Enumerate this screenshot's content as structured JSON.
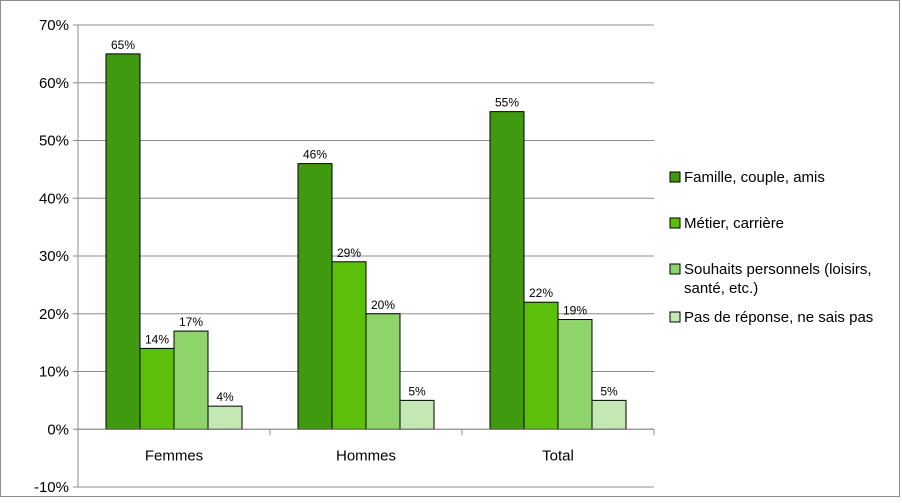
{
  "chart_data": {
    "type": "bar",
    "title": "",
    "xlabel": "",
    "ylabel": "",
    "categories": [
      "Femmes",
      "Hommes",
      "Total"
    ],
    "ylim": [
      -0.1,
      0.7
    ],
    "yticks": [
      "-10%",
      "0%",
      "10%",
      "20%",
      "30%",
      "40%",
      "50%",
      "60%",
      "70%"
    ],
    "grid": true,
    "legend_position": "right",
    "series": [
      {
        "name": "Famille, couple, amis",
        "color": "#3f9a0f",
        "values": [
          0.65,
          0.46,
          0.55
        ],
        "labels": [
          "65%",
          "46%",
          "55%"
        ]
      },
      {
        "name": "Métier, carrière",
        "color": "#5cbf0a",
        "values": [
          0.14,
          0.29,
          0.22
        ],
        "labels": [
          "14%",
          "29%",
          "22%"
        ]
      },
      {
        "name": "Souhaits personnels (loisirs, santé, etc.)",
        "legend_lines": [
          "Souhaits personnels (loisirs,",
          "santé, etc.)"
        ],
        "color": "#8ed46b",
        "values": [
          0.17,
          0.2,
          0.19
        ],
        "labels": [
          "17%",
          "20%",
          "19%"
        ]
      },
      {
        "name": "Pas de réponse, ne sais pas",
        "color": "#c4e8b4",
        "values": [
          0.04,
          0.05,
          0.05
        ],
        "labels": [
          "4%",
          "5%",
          "5%"
        ]
      }
    ]
  }
}
